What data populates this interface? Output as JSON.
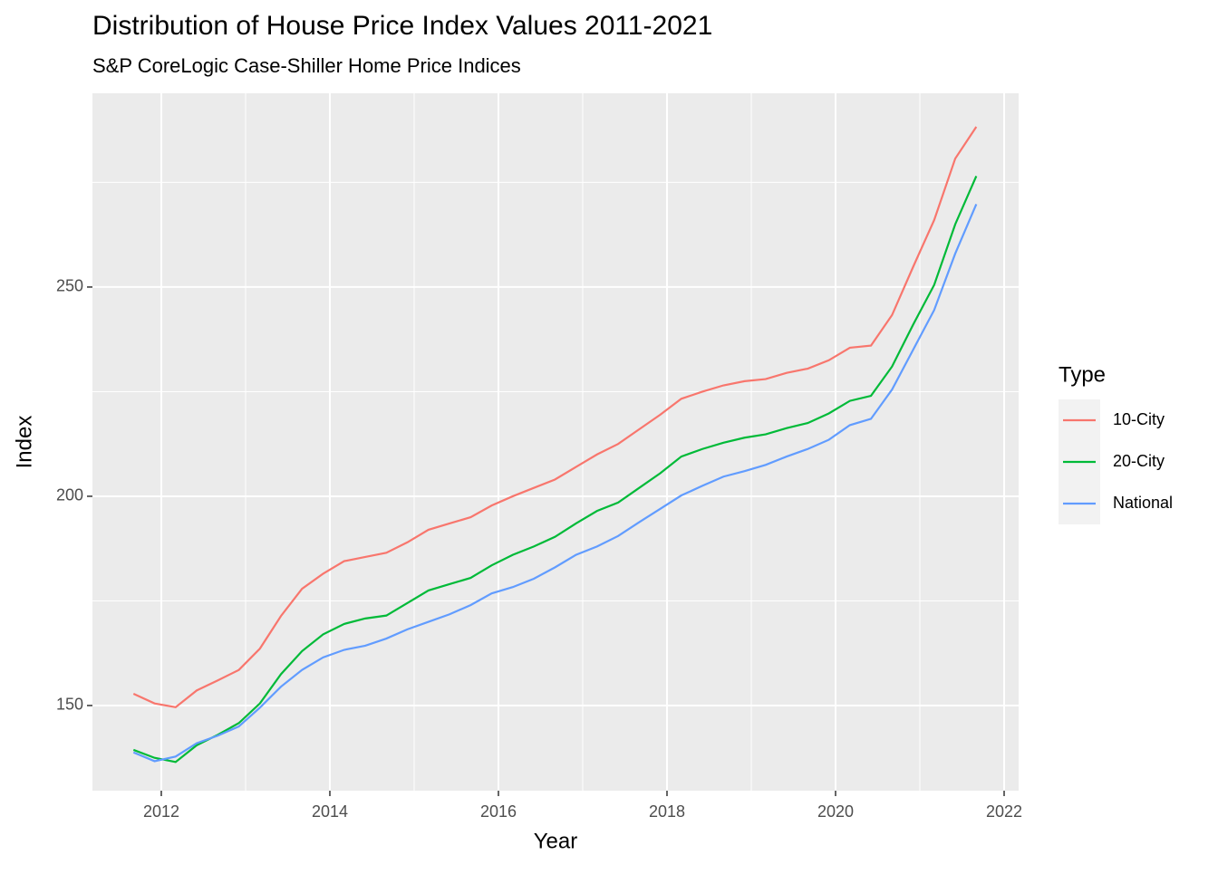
{
  "chart_data": {
    "type": "line",
    "title": "Distribution of House Price Index Values 2011-2021",
    "subtitle": "S&P CoreLogic Case-Shiller Home Price Indices",
    "x_label": "Year",
    "y_label": "Index",
    "legend_title": "Type",
    "x": [
      2011.67,
      2011.92,
      2012.17,
      2012.42,
      2012.67,
      2012.92,
      2013.17,
      2013.42,
      2013.67,
      2013.92,
      2014.17,
      2014.42,
      2014.67,
      2014.92,
      2015.17,
      2015.42,
      2015.67,
      2015.92,
      2016.17,
      2016.42,
      2016.67,
      2016.92,
      2017.17,
      2017.42,
      2017.67,
      2017.92,
      2018.17,
      2018.42,
      2018.67,
      2018.92,
      2019.17,
      2019.42,
      2019.67,
      2019.92,
      2020.17,
      2020.42,
      2020.67,
      2020.92,
      2021.17,
      2021.42,
      2021.67
    ],
    "series": [
      {
        "name": "10-City",
        "color": "#f8766d",
        "values": [
          152.8,
          150.5,
          149.6,
          153.6,
          156,
          158.5,
          163.6,
          171.4,
          177.9,
          181.5,
          184.5,
          185.5,
          186.5,
          189,
          192,
          193.5,
          195,
          197.8,
          200,
          202,
          204,
          207,
          210,
          212.5,
          216,
          219.5,
          223.3,
          225,
          226.5,
          227.5,
          228,
          229.5,
          230.5,
          232.5,
          235.5,
          236,
          243.3,
          254.8,
          266,
          280.7,
          288.3
        ]
      },
      {
        "name": "20-City",
        "color": "#00ba38",
        "values": [
          139.4,
          137.5,
          136.5,
          140.5,
          143,
          145.8,
          150.5,
          157.5,
          163,
          167,
          169.5,
          170.8,
          171.5,
          174.5,
          177.5,
          179,
          180.5,
          183.5,
          186,
          188,
          190.3,
          193.5,
          196.5,
          198.5,
          202,
          205.5,
          209.5,
          211.3,
          212.8,
          214,
          214.8,
          216.3,
          217.5,
          219.8,
          222.8,
          224,
          231,
          241,
          250.5,
          265,
          276.5
        ]
      },
      {
        "name": "National",
        "color": "#619cff",
        "values": [
          138.8,
          136.7,
          137.8,
          141,
          142.8,
          145,
          149.5,
          154.5,
          158.5,
          161.5,
          163.3,
          164.3,
          166,
          168.2,
          170,
          171.8,
          174,
          176.8,
          178.3,
          180.3,
          183,
          186,
          188,
          190.5,
          193.8,
          197,
          200.2,
          202.5,
          204.7,
          206,
          207.5,
          209.5,
          211.3,
          213.5,
          217,
          218.5,
          225.5,
          235,
          244.5,
          258,
          269.8
        ]
      }
    ],
    "xlim": [
      2011.183,
      2022.172
    ],
    "xticks": [
      2012,
      2014,
      2016,
      2018,
      2020,
      2022
    ],
    "ylim": [
      129.65,
      296.3
    ],
    "yticks": [
      150,
      200,
      250
    ],
    "grid": true,
    "panel_color": "#ebebeb",
    "legend_position": "right"
  }
}
